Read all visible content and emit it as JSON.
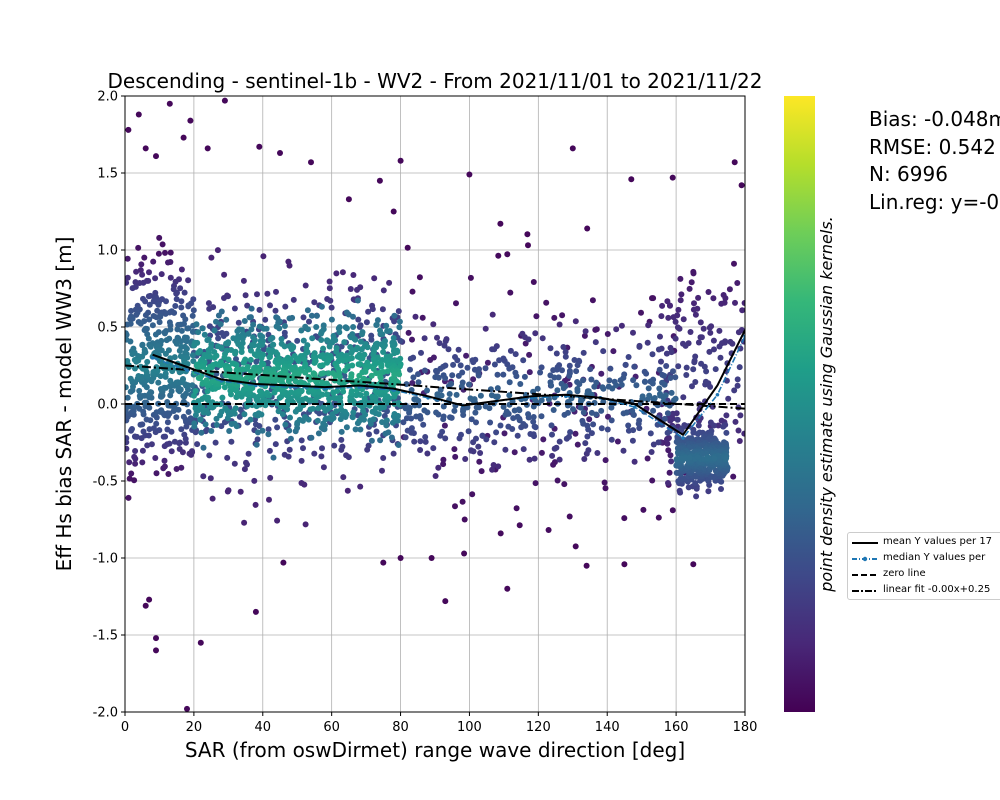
{
  "chart_data": {
    "type": "scatter",
    "title": "Descending - sentinel-1b - WV2 - From 2021/11/01 to 2021/11/22",
    "xlabel": "SAR (from oswDirmet) range wave direction [deg]",
    "ylabel": "Eff Hs bias SAR - model WW3 [m]",
    "xlim": [
      0,
      180
    ],
    "ylim": [
      -2.0,
      2.0
    ],
    "xticks": [
      "0",
      "20",
      "40",
      "60",
      "80",
      "100",
      "120",
      "140",
      "160",
      "180"
    ],
    "yticks": [
      "-2.0",
      "-1.5",
      "-1.0",
      "-0.5",
      "0.0",
      "0.5",
      "1.0",
      "1.5",
      "2.0"
    ],
    "grid": true,
    "colorbar": {
      "colormap": "viridis",
      "label": "point density estimate using Gaussian kernels.",
      "colors": [
        "#440154",
        "#482878",
        "#3e4989",
        "#31688e",
        "#26828e",
        "#1f9e89",
        "#35b779",
        "#6ece58",
        "#b5de2b",
        "#fde725"
      ]
    },
    "stats": {
      "bias": "Bias: -0.048m",
      "rmse": "RMSE: 0.542",
      "n": "N: 6996",
      "linreg": "Lin.reg: y=-0"
    },
    "legend": {
      "placement": "right",
      "entries": [
        {
          "label": "mean Y values per 17",
          "style": "solid",
          "color": "#000000"
        },
        {
          "label": "median Y values per",
          "style": "dashed-dot-markers",
          "color": "#1f77b4"
        },
        {
          "label": "zero line",
          "style": "dashed",
          "color": "#000000"
        },
        {
          "label": "linear fit -0.00x+0.25",
          "style": "dashdot",
          "color": "#000000"
        }
      ]
    },
    "mean_line": {
      "x": [
        8,
        18,
        28,
        38,
        48,
        58,
        68,
        78,
        88,
        98,
        108,
        118,
        128,
        138,
        148,
        162,
        172,
        180
      ],
      "y": [
        0.32,
        0.24,
        0.16,
        0.13,
        0.12,
        0.11,
        0.12,
        0.1,
        0.05,
        -0.01,
        0.02,
        0.05,
        0.06,
        0.04,
        0.0,
        -0.2,
        0.12,
        0.48
      ]
    },
    "median_line": {
      "x": [
        8,
        18,
        28,
        38,
        48,
        58,
        68,
        78,
        88,
        98,
        108,
        118,
        128,
        138,
        148,
        162,
        172,
        180
      ],
      "y": [
        0.3,
        0.22,
        0.15,
        0.12,
        0.11,
        0.1,
        0.11,
        0.09,
        0.04,
        -0.01,
        0.02,
        0.04,
        0.05,
        0.04,
        -0.02,
        -0.22,
        0.06,
        0.44
      ]
    },
    "zero_line": {
      "x": [
        0,
        180
      ],
      "y": [
        0.0,
        0.0
      ]
    },
    "linear_fit": {
      "x": [
        0,
        180
      ],
      "y": [
        0.25,
        -0.03
      ]
    },
    "scatter_regions": [
      {
        "x_range": [
          0,
          20
        ],
        "y_center": 0.25,
        "y_spread": 0.55,
        "count": 420,
        "density": [
          0.05,
          0.45
        ]
      },
      {
        "x_range": [
          20,
          80
        ],
        "y_center": 0.18,
        "y_spread": 0.3,
        "count": 900,
        "density": [
          0.35,
          0.6
        ]
      },
      {
        "x_range": [
          20,
          80
        ],
        "y_center": 0.15,
        "y_spread": 0.55,
        "count": 420,
        "density": [
          0.1,
          0.3
        ]
      },
      {
        "x_range": [
          80,
          160
        ],
        "y_center": 0.05,
        "y_spread": 0.35,
        "count": 420,
        "density": [
          0.12,
          0.32
        ]
      },
      {
        "x_range": [
          80,
          160
        ],
        "y_center": 0.05,
        "y_spread": 0.75,
        "count": 130,
        "density": [
          0.02,
          0.1
        ]
      },
      {
        "x_range": [
          160,
          175
        ],
        "y_center": -0.35,
        "y_spread": 0.16,
        "count": 380,
        "density": [
          0.18,
          0.36
        ]
      },
      {
        "x_range": [
          155,
          180
        ],
        "y_center": 0.2,
        "y_spread": 0.55,
        "count": 150,
        "density": [
          0.05,
          0.2
        ]
      }
    ],
    "scatter_outliers": [
      {
        "x": 1,
        "y": 1.78
      },
      {
        "x": 4,
        "y": 1.88
      },
      {
        "x": 6,
        "y": 1.66
      },
      {
        "x": 9,
        "y": 1.61
      },
      {
        "x": 13,
        "y": 1.95
      },
      {
        "x": 17,
        "y": 1.73
      },
      {
        "x": 19,
        "y": 1.84
      },
      {
        "x": 24,
        "y": 1.66
      },
      {
        "x": 29,
        "y": 1.97
      },
      {
        "x": 39,
        "y": 1.67
      },
      {
        "x": 45,
        "y": 1.63
      },
      {
        "x": 54,
        "y": 1.57
      },
      {
        "x": 65,
        "y": 1.33
      },
      {
        "x": 74,
        "y": 1.45
      },
      {
        "x": 78,
        "y": 1.25
      },
      {
        "x": 80,
        "y": 1.58
      },
      {
        "x": 100,
        "y": 1.49
      },
      {
        "x": 109,
        "y": 1.17
      },
      {
        "x": 130,
        "y": 1.66
      },
      {
        "x": 147,
        "y": 1.46
      },
      {
        "x": 159,
        "y": 1.47
      },
      {
        "x": 177,
        "y": 1.57
      },
      {
        "x": 179,
        "y": 1.42
      },
      {
        "x": 9,
        "y": -1.52
      },
      {
        "x": 9,
        "y": -1.6
      },
      {
        "x": 7,
        "y": -1.27
      },
      {
        "x": 6,
        "y": -1.31
      },
      {
        "x": 18,
        "y": -1.98
      },
      {
        "x": 22,
        "y": -1.55
      },
      {
        "x": 38,
        "y": -1.35
      },
      {
        "x": 93,
        "y": -1.28
      },
      {
        "x": 111,
        "y": -1.2
      },
      {
        "x": 134,
        "y": -1.05
      },
      {
        "x": 145,
        "y": -1.04
      },
      {
        "x": 165,
        "y": -1.04
      },
      {
        "x": 80,
        "y": -1.0
      },
      {
        "x": 89,
        "y": -1.0
      },
      {
        "x": 75,
        "y": -1.03
      },
      {
        "x": 46,
        "y": -1.03
      }
    ]
  }
}
